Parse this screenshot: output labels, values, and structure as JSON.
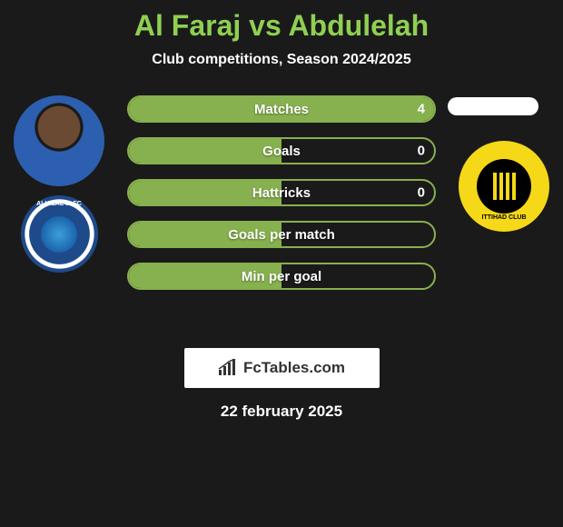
{
  "title": {
    "text": "Al Faraj vs Abdulelah",
    "color": "#8fcf52",
    "fontsize": 32
  },
  "subtitle": "Club competitions, Season 2024/2025",
  "accent_color": "#87b04e",
  "background_color": "#1a1a1a",
  "text_color": "#ffffff",
  "stats": [
    {
      "label": "Matches",
      "left_value": "4",
      "left_fill_pct": 100
    },
    {
      "label": "Goals",
      "left_value": "0",
      "left_fill_pct": 50
    },
    {
      "label": "Hattricks",
      "left_value": "0",
      "left_fill_pct": 50
    },
    {
      "label": "Goals per match",
      "left_value": "",
      "left_fill_pct": 50
    },
    {
      "label": "Min per goal",
      "left_value": "",
      "left_fill_pct": 50
    }
  ],
  "stat_bar": {
    "height": 30,
    "border_radius": 15,
    "border_color": "#87b04e",
    "fill_color": "#87b04e",
    "gap": 16,
    "label_fontsize": 15
  },
  "player_left": {
    "name": "Al Faraj",
    "photo_bg": "#2d5fb0"
  },
  "club_left": {
    "name": "Al Hilal",
    "label": "ALHILAL S. FC",
    "primary_color": "#1e4a8a"
  },
  "club_right": {
    "name": "Al Ittihad",
    "label": "ITTIHAD CLUB",
    "primary_color": "#f5d817",
    "secondary_color": "#000000"
  },
  "brand": {
    "text": "FcTables.com",
    "icon": "bar-chart"
  },
  "date": "22 february 2025"
}
